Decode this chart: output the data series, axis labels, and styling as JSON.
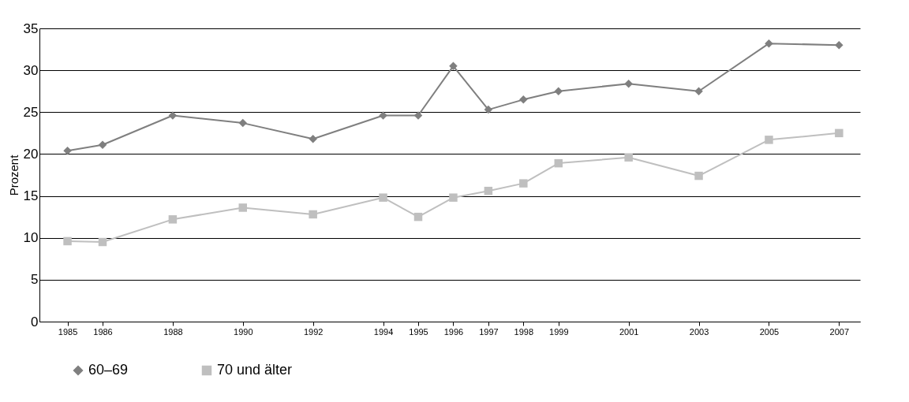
{
  "chart_data": {
    "type": "line",
    "ylabel": "Prozent",
    "x": [
      1985,
      1986,
      1988,
      1990,
      1992,
      1994,
      1995,
      1996,
      1997,
      1998,
      1999,
      2001,
      2003,
      2005,
      2007
    ],
    "series": [
      {
        "name": "60–69",
        "color": "#7f7f7f",
        "marker": "diamond",
        "values": [
          20.4,
          21.1,
          24.6,
          23.7,
          21.8,
          24.6,
          24.6,
          30.5,
          25.3,
          26.5,
          27.5,
          28.4,
          27.5,
          33.2,
          33.0
        ]
      },
      {
        "name": "70 und älter",
        "color": "#bfbfbf",
        "marker": "square",
        "values": [
          9.6,
          9.5,
          12.2,
          13.6,
          12.8,
          14.8,
          12.5,
          14.8,
          15.6,
          16.5,
          18.9,
          19.6,
          17.4,
          21.7,
          22.5
        ]
      }
    ],
    "xlim": [
      1984.2,
      2007.6
    ],
    "xticks": [
      1985,
      1986,
      1988,
      1990,
      1992,
      1994,
      1995,
      1996,
      1997,
      1998,
      1999,
      2001,
      2003,
      2005,
      2007
    ],
    "ylim": [
      0,
      35
    ],
    "yticks": [
      0,
      5,
      10,
      15,
      20,
      25,
      30,
      35
    ],
    "grid": "y",
    "legend": "bottom left"
  }
}
